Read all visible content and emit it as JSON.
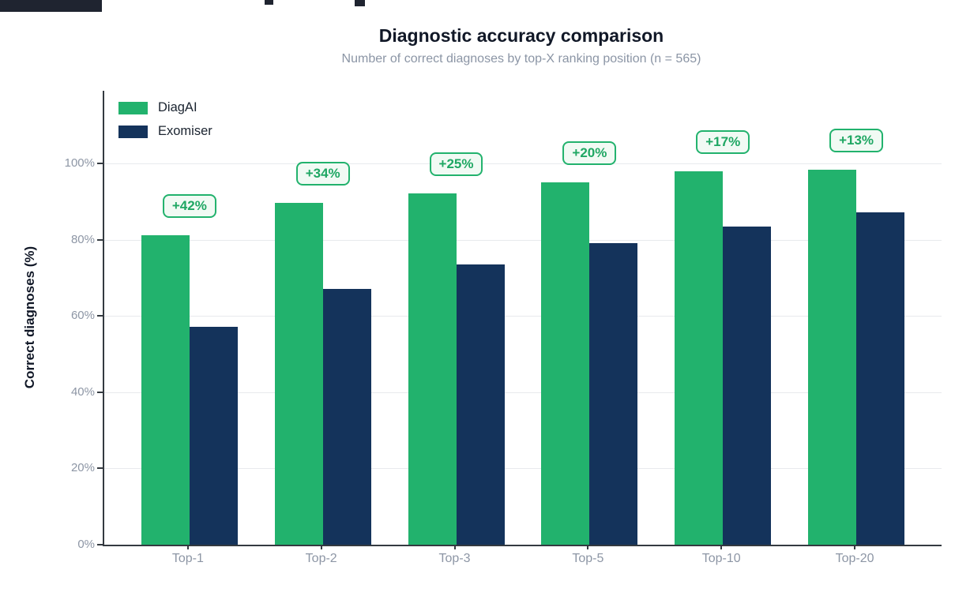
{
  "colors": {
    "diagai_green": "#22b26d",
    "exomiser_navy": "#14335b",
    "badge_background": "#f1faf4",
    "badge_border": "#22b26d",
    "gridline": "#e8eaed",
    "axis": "#343a40",
    "tick_label_gray": "#8d96a5",
    "subtitle_gray": "#8b95a5",
    "artifact_dark": "#1f2430"
  },
  "chart_data": {
    "type": "bar",
    "title": "Diagnostic accuracy comparison",
    "subtitle": "Number of correct diagnoses by top-X ranking position (n = 565)",
    "ylabel": "Correct diagnoses (%)",
    "xlabel": "",
    "categories": [
      "Top-1",
      "Top-2",
      "Top-3",
      "Top-5",
      "Top-10",
      "Top-20"
    ],
    "series": [
      {
        "name": "DiagAI",
        "color": "#22b26d",
        "values": [
          81.2,
          89.6,
          92.2,
          95.0,
          97.9,
          98.4
        ]
      },
      {
        "name": "Exomiser",
        "color": "#14335b",
        "values": [
          57.2,
          67.0,
          73.6,
          79.1,
          83.4,
          87.1
        ]
      }
    ],
    "annotations": [
      "+42%",
      "+34%",
      "+25%",
      "+20%",
      "+17%",
      "+13%"
    ],
    "ylim": [
      0,
      100
    ],
    "yticks": [
      "0%",
      "20%",
      "40%",
      "60%",
      "80%",
      "100%"
    ],
    "ytick_values": [
      0,
      20,
      40,
      60,
      80,
      100
    ],
    "grid": true,
    "legend_position": "top-left"
  }
}
